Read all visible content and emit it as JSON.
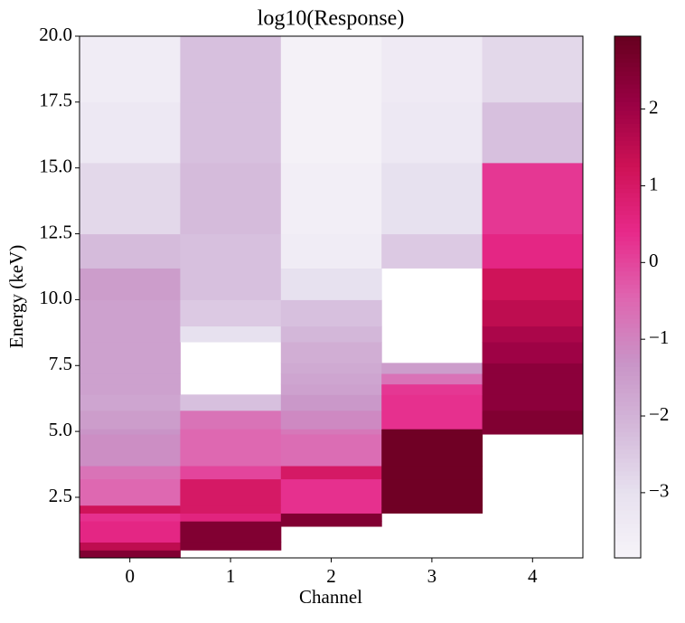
{
  "chart_data": {
    "type": "heatmap",
    "title": "log10(Response)",
    "xlabel": "Channel",
    "ylabel": "Energy (keV)",
    "categories": [
      "0",
      "1",
      "2",
      "3",
      "4"
    ],
    "y_edges": [
      0.2,
      0.5,
      0.8,
      1.4,
      1.6,
      1.9,
      2.2,
      3.2,
      3.7,
      4.9,
      5.1,
      5.8,
      6.4,
      6.8,
      7.2,
      7.6,
      8.4,
      9.0,
      10.0,
      11.2,
      12.5,
      15.2,
      17.5,
      20.0
    ],
    "values": [
      [
        2.5,
        null,
        null,
        null,
        null
      ],
      [
        1.5,
        2.5,
        null,
        null,
        null
      ],
      [
        0.5,
        2.5,
        null,
        null,
        null
      ],
      [
        0.5,
        2.5,
        2.5,
        null,
        null
      ],
      [
        0.3,
        0.6,
        2.5,
        null,
        null
      ],
      [
        1.2,
        1.0,
        0.3,
        2.8,
        null
      ],
      [
        -0.5,
        1.0,
        0.3,
        2.8,
        null
      ],
      [
        -0.7,
        0.0,
        1.0,
        2.8,
        null
      ],
      [
        -1.2,
        -0.5,
        -0.6,
        2.8,
        null
      ],
      [
        -1.3,
        -0.5,
        -0.8,
        2.8,
        2.5
      ],
      [
        -1.5,
        -0.7,
        -1.1,
        0.3,
        2.5
      ],
      [
        -1.7,
        -2.3,
        -1.4,
        0.3,
        2.3
      ],
      [
        -1.6,
        null,
        -1.6,
        0.2,
        2.3
      ],
      [
        -1.6,
        null,
        -1.7,
        -0.7,
        2.3
      ],
      [
        -1.6,
        null,
        -1.8,
        -1.5,
        2.3
      ],
      [
        -1.6,
        null,
        -1.9,
        null,
        2.0
      ],
      [
        -1.6,
        -3.0,
        -2.1,
        null,
        1.8
      ],
      [
        -1.6,
        -2.5,
        -2.3,
        null,
        1.5
      ],
      [
        -1.5,
        -2.3,
        -3.0,
        null,
        1.2
      ],
      [
        -2.2,
        -2.3,
        -3.5,
        -2.5,
        0.5
      ],
      [
        -2.8,
        -2.2,
        -3.6,
        -3.0,
        0.2
      ],
      [
        -3.3,
        -2.3,
        -3.7,
        -3.3,
        -2.3
      ],
      [
        -3.5,
        -2.3,
        -3.7,
        -3.4,
        -2.8
      ]
    ],
    "ylim": [
      0.2,
      20.0
    ],
    "yticks": [
      2.5,
      {
        "value": 5,
        "label": "5.0"
      },
      7.5,
      {
        "value": 10,
        "label": "10.0"
      },
      12.5,
      {
        "value": 15,
        "label": "15.0"
      },
      17.5,
      {
        "value": 20,
        "label": "20.0"
      }
    ],
    "clim": [
      -3.85,
      2.95
    ],
    "cticks": [
      {
        "value": -3,
        "label": "−3"
      },
      {
        "value": -2,
        "label": "−2"
      },
      {
        "value": -1,
        "label": "−1"
      },
      0,
      1,
      2
    ],
    "colormap": [
      "#f7f4f9",
      "#e7e1ef",
      "#d4b9da",
      "#c994c7",
      "#df65b0",
      "#e7298a",
      "#ce1256",
      "#980043",
      "#67001f"
    ]
  }
}
